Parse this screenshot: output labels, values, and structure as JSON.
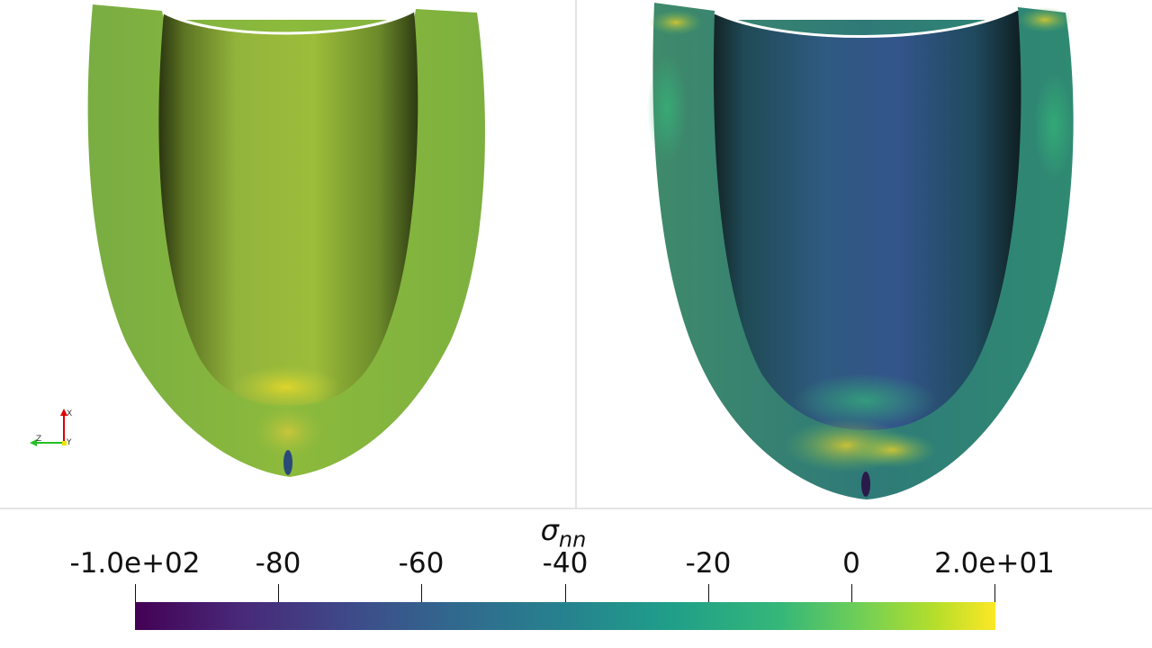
{
  "scene": {
    "left_view": "ventricle-cross-section-left",
    "right_view": "ventricle-cross-section-right",
    "orientation_axes": {
      "x_label": "X",
      "y_label": "Y",
      "z_label": "Z",
      "colors": {
        "x": "#e00000",
        "y": "#e8e800",
        "z": "#22c022"
      }
    }
  },
  "legend": {
    "title": "σ",
    "title_sub": "nn",
    "ticks": [
      "-1.0e+02",
      "-80",
      "-60",
      "-40",
      "-20",
      "0",
      "2.0e+01"
    ],
    "range": [
      -100,
      20
    ],
    "colormap": "viridis",
    "colors": [
      "#440154",
      "#3e4a89",
      "#26828e",
      "#35b779",
      "#b5de2b",
      "#fde725"
    ]
  }
}
